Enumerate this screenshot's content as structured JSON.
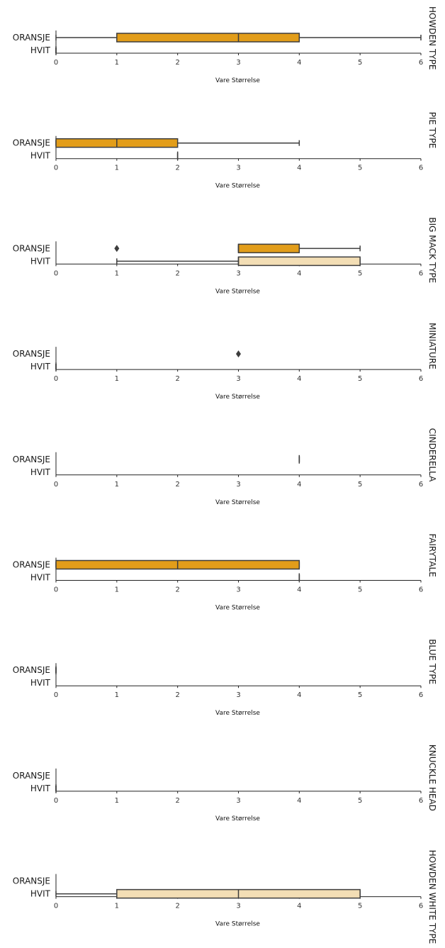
{
  "chart_data": {
    "type": "box",
    "xlabel": "Vare Størrelse",
    "categories": [
      "ORANSJE",
      "HVIT"
    ],
    "xlim": [
      0,
      6
    ],
    "xticks": [
      0,
      1,
      2,
      3,
      4,
      5,
      6
    ],
    "colors": {
      "ORANSJE": "#E29D1A",
      "HVIT": "#F3DEB5",
      "line": "#3d3d3d"
    },
    "facets": [
      {
        "title": "HOWDEN TYPE",
        "boxes": [
          {
            "category": "ORANSJE",
            "whisker_low": 0,
            "q1": 1,
            "median": 3,
            "q3": 4,
            "whisker_high": 6,
            "outliers": []
          },
          {
            "category": "HVIT",
            "whisker_low": 0,
            "q1": 0,
            "median": 0,
            "q3": 0,
            "whisker_high": 0,
            "outliers": []
          }
        ]
      },
      {
        "title": "PIE TYPE",
        "boxes": [
          {
            "category": "ORANSJE",
            "whisker_low": 0,
            "q1": 0,
            "median": 1,
            "q3": 2,
            "whisker_high": 4,
            "outliers": []
          },
          {
            "category": "HVIT",
            "whisker_low": 2,
            "q1": 2,
            "median": 2,
            "q3": 2,
            "whisker_high": 2,
            "outliers": []
          }
        ]
      },
      {
        "title": "BIG MACK TYPE",
        "boxes": [
          {
            "category": "ORANSJE",
            "whisker_low": 3,
            "q1": 3,
            "median": 3,
            "q3": 4,
            "whisker_high": 5,
            "outliers": [
              1
            ]
          },
          {
            "category": "HVIT",
            "whisker_low": 1,
            "q1": 3,
            "median": 3,
            "q3": 5,
            "whisker_high": 5,
            "outliers": []
          }
        ]
      },
      {
        "title": "MINIATURE",
        "boxes": [
          {
            "category": "ORANSJE",
            "whisker_low": null,
            "q1": null,
            "median": null,
            "q3": null,
            "whisker_high": null,
            "outliers": [
              3
            ]
          },
          {
            "category": "HVIT",
            "whisker_low": 0,
            "q1": 0,
            "median": 0,
            "q3": 0,
            "whisker_high": 0,
            "outliers": []
          }
        ]
      },
      {
        "title": "CINDERELLA",
        "boxes": [
          {
            "category": "ORANSJE",
            "whisker_low": 4,
            "q1": 4,
            "median": 4,
            "q3": 4,
            "whisker_high": 4,
            "outliers": []
          },
          {
            "category": "HVIT",
            "whisker_low": null,
            "q1": null,
            "median": null,
            "q3": null,
            "whisker_high": null,
            "outliers": []
          }
        ]
      },
      {
        "title": "FAIRYTALE",
        "boxes": [
          {
            "category": "ORANSJE",
            "whisker_low": 0,
            "q1": 0,
            "median": 2,
            "q3": 4,
            "whisker_high": 4,
            "outliers": []
          },
          {
            "category": "HVIT",
            "whisker_low": 4,
            "q1": 4,
            "median": 4,
            "q3": 4,
            "whisker_high": 4,
            "outliers": []
          }
        ]
      },
      {
        "title": "BLUE TYPE",
        "boxes": [
          {
            "category": "ORANSJE",
            "whisker_low": 0,
            "q1": 0,
            "median": 0,
            "q3": 0,
            "whisker_high": 0,
            "outliers": []
          },
          {
            "category": "HVIT",
            "whisker_low": null,
            "q1": null,
            "median": null,
            "q3": null,
            "whisker_high": null,
            "outliers": []
          }
        ]
      },
      {
        "title": "KNUCKLE HEAD",
        "boxes": [
          {
            "category": "ORANSJE",
            "whisker_low": null,
            "q1": null,
            "median": null,
            "q3": null,
            "whisker_high": null,
            "outliers": []
          },
          {
            "category": "HVIT",
            "whisker_low": 0,
            "q1": 0,
            "median": 0,
            "q3": 0,
            "whisker_high": 0,
            "outliers": []
          }
        ]
      },
      {
        "title": "HOWDEN WHITE TYPE",
        "boxes": [
          {
            "category": "ORANSJE",
            "whisker_low": null,
            "q1": null,
            "median": null,
            "q3": null,
            "whisker_high": null,
            "outliers": []
          },
          {
            "category": "HVIT",
            "whisker_low": 0,
            "q1": 1,
            "median": 3,
            "q3": 5,
            "whisker_high": 5,
            "outliers": []
          }
        ]
      }
    ]
  }
}
